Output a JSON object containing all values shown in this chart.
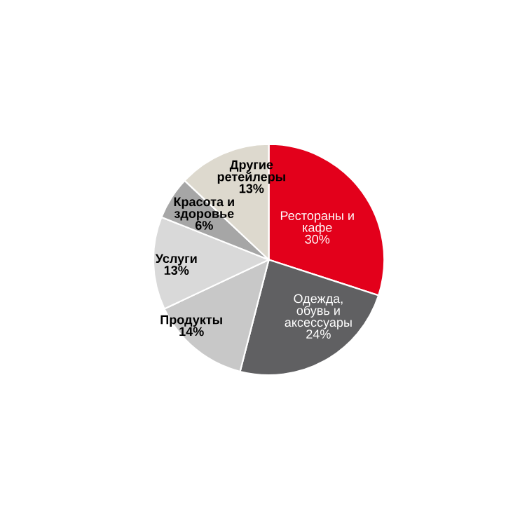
{
  "chart_data": {
    "type": "pie",
    "categories": [
      "Рестораны и\nкафе",
      "Одежда,\nобувь и\nаксессуары",
      "Продукты",
      "Услуги",
      "Красота и\nздоровье",
      "Другие\nретейлеры"
    ],
    "values": [
      30,
      24,
      14,
      13,
      6,
      13
    ],
    "value_labels": [
      "30%",
      "24%",
      "14%",
      "13%",
      "6%",
      "13%"
    ],
    "colors": [
      "#e3001b",
      "#606062",
      "#c8c8c8",
      "#d9d9d9",
      "#a6a6a6",
      "#ddd9ce"
    ]
  }
}
